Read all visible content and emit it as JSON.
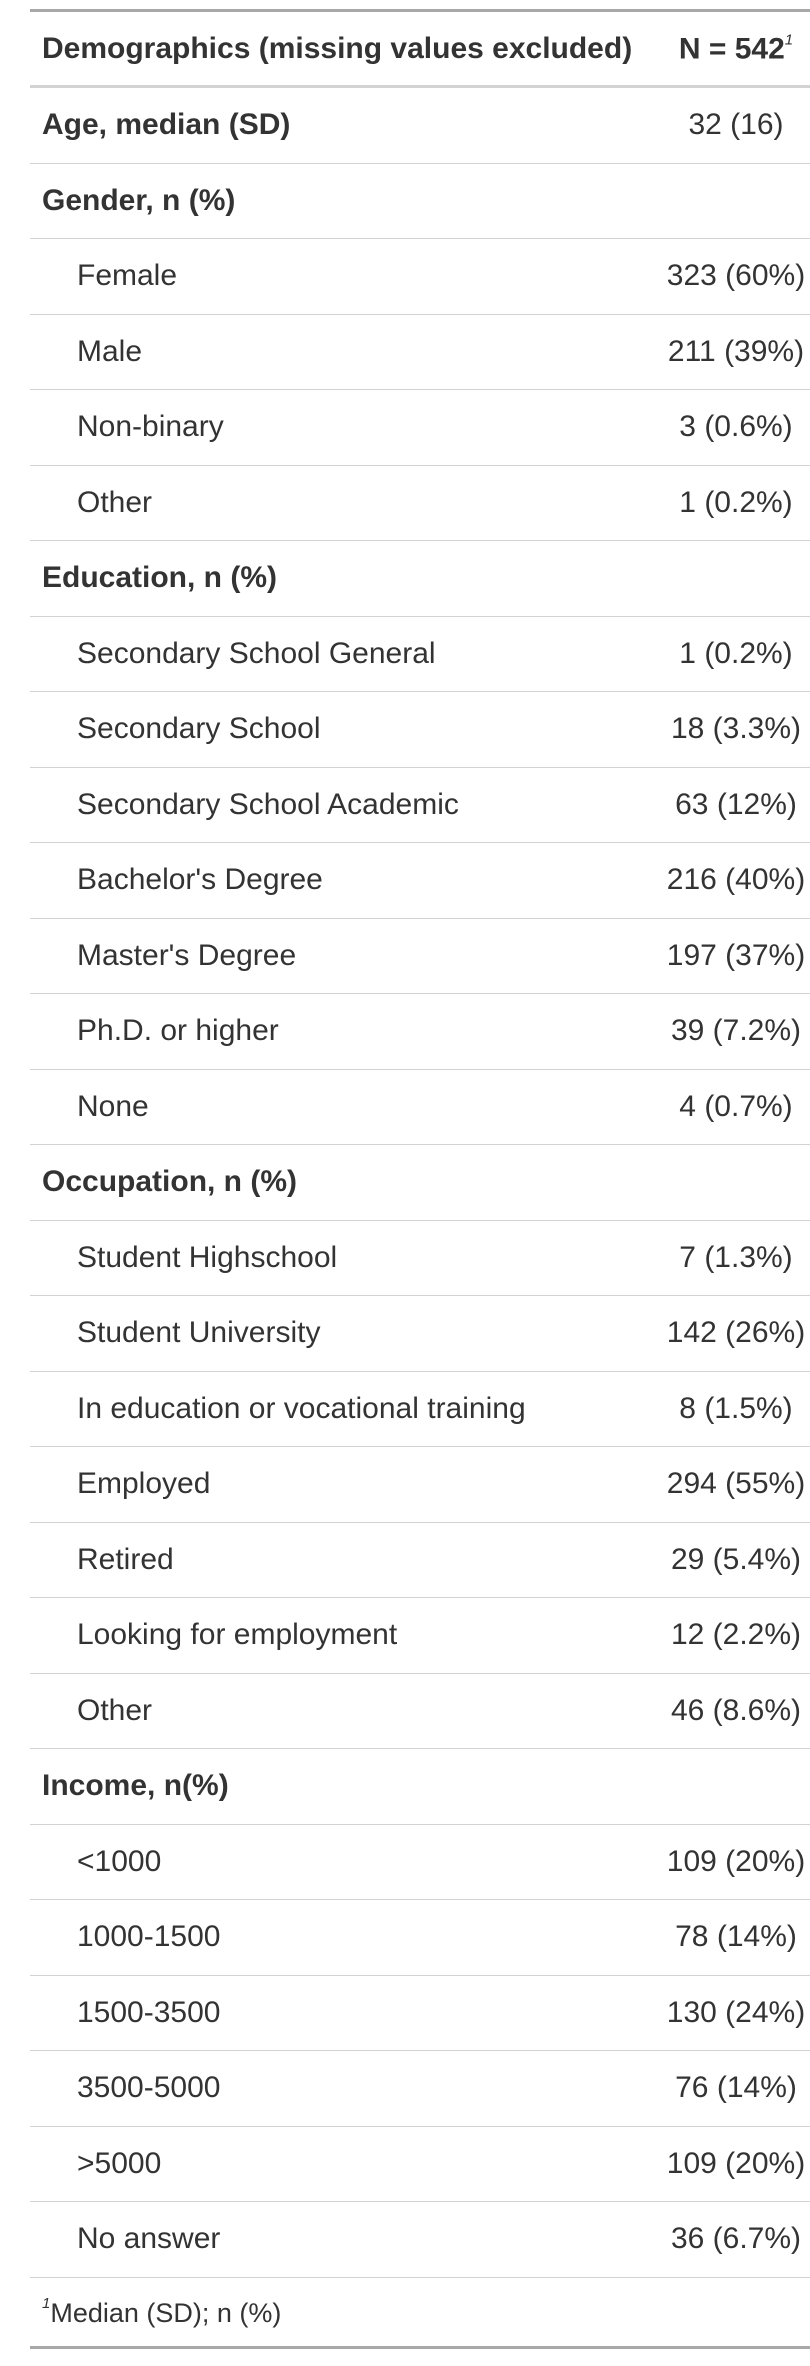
{
  "header": {
    "label": "Demographics (missing values excluded)",
    "n_label": "N = 542",
    "n_marker": "1"
  },
  "age": {
    "label": "Age, median (SD)",
    "value": "32 (16)"
  },
  "groups": [
    {
      "title": "Gender, n (%)",
      "items": [
        {
          "label": "Female",
          "value": "323 (60%)"
        },
        {
          "label": "Male",
          "value": "211 (39%)"
        },
        {
          "label": "Non-binary",
          "value": "3 (0.6%)"
        },
        {
          "label": "Other",
          "value": "1 (0.2%)"
        }
      ]
    },
    {
      "title": "Education, n (%)",
      "items": [
        {
          "label": "Secondary School General",
          "value": "1 (0.2%)"
        },
        {
          "label": "Secondary School",
          "value": "18 (3.3%)"
        },
        {
          "label": "Secondary School Academic",
          "value": "63 (12%)"
        },
        {
          "label": "Bachelor's Degree",
          "value": "216 (40%)"
        },
        {
          "label": "Master's Degree",
          "value": "197 (37%)"
        },
        {
          "label": "Ph.D. or higher",
          "value": "39 (7.2%)"
        },
        {
          "label": "None",
          "value": "4 (0.7%)"
        }
      ]
    },
    {
      "title": "Occupation, n (%)",
      "items": [
        {
          "label": "Student Highschool",
          "value": "7 (1.3%)"
        },
        {
          "label": "Student University",
          "value": "142 (26%)"
        },
        {
          "label": "In education or vocational training",
          "value": "8 (1.5%)"
        },
        {
          "label": "Employed",
          "value": "294 (55%)"
        },
        {
          "label": "Retired",
          "value": "29 (5.4%)"
        },
        {
          "label": "Looking for employment",
          "value": "12 (2.2%)"
        },
        {
          "label": "Other",
          "value": "46 (8.6%)"
        }
      ]
    },
    {
      "title": "Income, n(%)",
      "items": [
        {
          "label": "<1000",
          "value": "109 (20%)"
        },
        {
          "label": "1000-1500",
          "value": "78 (14%)"
        },
        {
          "label": "1500-3500",
          "value": "130 (24%)"
        },
        {
          "label": "3500-5000",
          "value": "76 (14%)"
        },
        {
          "label": ">5000",
          "value": "109 (20%)"
        },
        {
          "label": "No answer",
          "value": "36 (6.7%)"
        }
      ]
    }
  ],
  "footnote": {
    "marker": "1",
    "text": "Median (SD); n (%)"
  }
}
